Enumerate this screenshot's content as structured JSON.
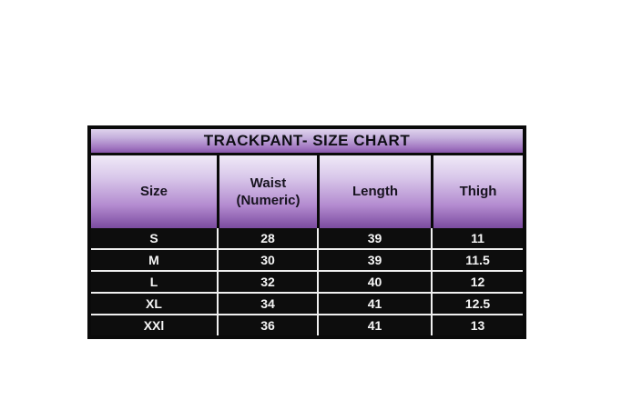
{
  "title": "TRACKPANT- SIZE CHART",
  "table": {
    "header": {
      "size": "Size",
      "waist_line1": "Waist",
      "waist_line2": "(Numeric)",
      "length": "Length",
      "thigh": "Thigh"
    }
  },
  "chart_data": {
    "type": "table",
    "title": "TRACKPANT- SIZE CHART",
    "columns": [
      "Size",
      "Waist (Numeric)",
      "Length",
      "Thigh"
    ],
    "rows": [
      [
        "S",
        "28",
        "39",
        "11"
      ],
      [
        "M",
        "30",
        "39",
        "11.5"
      ],
      [
        "L",
        "32",
        "40",
        "12"
      ],
      [
        "XL",
        "34",
        "41",
        "12.5"
      ],
      [
        "XXl",
        "36",
        "41",
        "13"
      ]
    ]
  },
  "colors": {
    "page_background": "#ffffff",
    "border": "#0a0a0a",
    "title_gradient_top": "#ded2ec",
    "title_gradient_bottom": "#8a58ad",
    "header_gradient_top": "#efe9f7",
    "header_gradient_bottom": "#7b4ba0",
    "row_background": "#0d0d0d",
    "row_text": "#f5f5f5",
    "divider": "#efefef"
  }
}
